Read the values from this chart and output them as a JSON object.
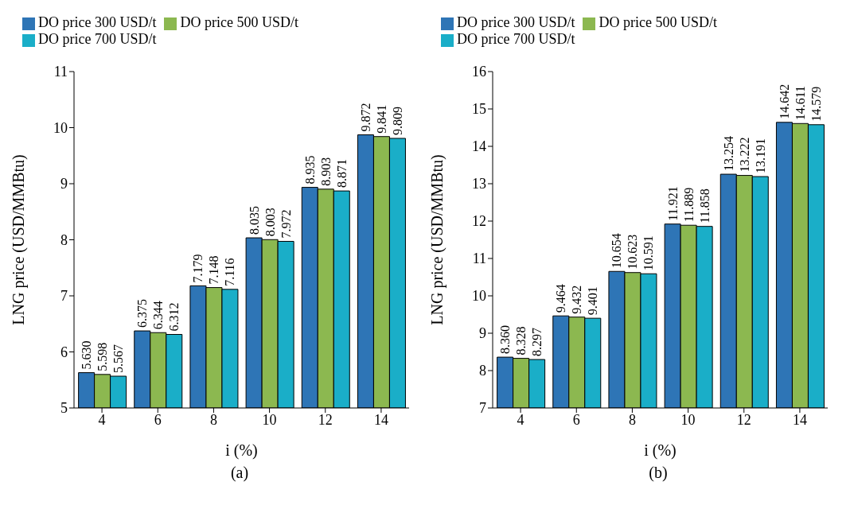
{
  "chart_data": [
    {
      "type": "bar",
      "xlabel": "i (%)",
      "ylabel": "LNG price (USD/MMBtu)",
      "annotations": [
        "(a)"
      ],
      "categories": [
        "4",
        "6",
        "8",
        "10",
        "12",
        "14"
      ],
      "ylim": [
        5,
        11
      ],
      "yticks": [
        5,
        6,
        7,
        8,
        9,
        10,
        11
      ],
      "grid": false,
      "legend": "top",
      "series": [
        {
          "name": "DO price 300 USD/t",
          "color": "#2e75b6",
          "values": [
            5.63,
            6.375,
            7.179,
            8.035,
            8.935,
            9.872
          ],
          "value_labels": [
            "5.630",
            "6.375",
            "7.179",
            "8.035",
            "8.935",
            "9.872"
          ]
        },
        {
          "name": "DO price 500 USD/t",
          "color": "#8cb850",
          "values": [
            5.598,
            6.344,
            7.148,
            8.003,
            8.903,
            9.841
          ],
          "value_labels": [
            "5.598",
            "6.344",
            "7.148",
            "8.003",
            "8.903",
            "9.841"
          ]
        },
        {
          "name": "DO price 700 USD/t",
          "color": "#1aaec8",
          "values": [
            5.567,
            6.312,
            7.116,
            7.972,
            8.871,
            9.809
          ],
          "value_labels": [
            "5.567",
            "6.312",
            "7.116",
            "7.972",
            "8.871",
            "9.809"
          ]
        }
      ]
    },
    {
      "type": "bar",
      "xlabel": "i (%)",
      "ylabel": "LNG price (USD/MMBtu)",
      "annotations": [
        "(b)"
      ],
      "categories": [
        "4",
        "6",
        "8",
        "10",
        "12",
        "14"
      ],
      "ylim": [
        7,
        16
      ],
      "yticks": [
        7,
        8,
        9,
        10,
        11,
        12,
        13,
        14,
        15,
        16
      ],
      "grid": false,
      "legend": "top",
      "series": [
        {
          "name": "DO price 300 USD/t",
          "color": "#2e75b6",
          "values": [
            8.36,
            9.464,
            10.654,
            11.921,
            13.254,
            14.642
          ],
          "value_labels": [
            "8.360",
            "9.464",
            "10.654",
            "11.921",
            "13.254",
            "14.642"
          ]
        },
        {
          "name": "DO price 500 USD/t",
          "color": "#8cb850",
          "values": [
            8.328,
            9.432,
            10.623,
            11.889,
            13.222,
            14.611
          ],
          "value_labels": [
            "8.328",
            "9.432",
            "10.623",
            "11.889",
            "13.222",
            "14.611"
          ]
        },
        {
          "name": "DO price 700 USD/t",
          "color": "#1aaec8",
          "values": [
            8.297,
            9.401,
            10.591,
            11.858,
            13.191,
            14.579
          ],
          "value_labels": [
            "8.297",
            "9.401",
            "10.591",
            "11.858",
            "13.191",
            "14.579"
          ]
        }
      ]
    }
  ]
}
